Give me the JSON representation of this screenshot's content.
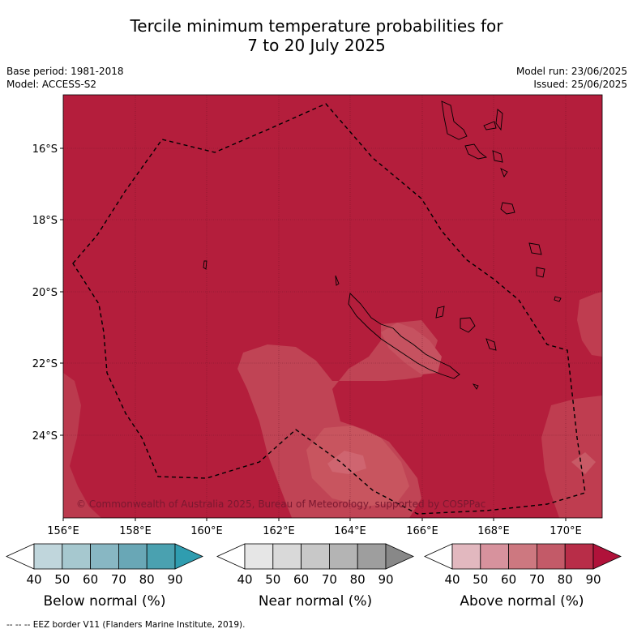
{
  "title_line1": "Tercile minimum temperature probabilities for",
  "title_line2": "7 to 20 July 2025",
  "meta": {
    "base_period": "Base period: 1981-2018",
    "model": "Model: ACCESS-S2",
    "model_run": "Model run: 23/06/2025",
    "issued": "Issued: 25/06/2025"
  },
  "map": {
    "lat_labels": [
      "16°S",
      "18°S",
      "20°S",
      "22°S",
      "24°S"
    ],
    "lon_labels": [
      "156°E",
      "158°E",
      "160°E",
      "162°E",
      "164°E",
      "166°E",
      "168°E",
      "170°E"
    ],
    "copyright": "© Commonwealth of Australia 2025, Bureau of Meteorology, supported by COSPPac",
    "base_color": "#b41e3c"
  },
  "colorbars": [
    {
      "title": "Below normal (%)",
      "ticks": [
        "40",
        "50",
        "60",
        "70",
        "80",
        "90"
      ],
      "colors": [
        "#ffffff",
        "#c0d6dc",
        "#a6c8cf",
        "#88b7c3",
        "#69a7b6",
        "#4aa1b0",
        "#2f9db0"
      ]
    },
    {
      "title": "Near normal (%)",
      "ticks": [
        "40",
        "50",
        "60",
        "70",
        "80",
        "90"
      ],
      "colors": [
        "#ffffff",
        "#e6e6e6",
        "#d9d9d9",
        "#c8c8c8",
        "#b4b4b4",
        "#9e9e9e",
        "#888888"
      ]
    },
    {
      "title": "Above normal (%)",
      "ticks": [
        "40",
        "50",
        "60",
        "70",
        "80",
        "90"
      ],
      "colors": [
        "#ffffff",
        "#e2b8bf",
        "#d7929d",
        "#cd7880",
        "#c35a68",
        "#b82d48",
        "#b0123a"
      ]
    }
  ],
  "footer": "--  --  -- EEZ border V11 (Flanders Marine Institute, 2019)."
}
